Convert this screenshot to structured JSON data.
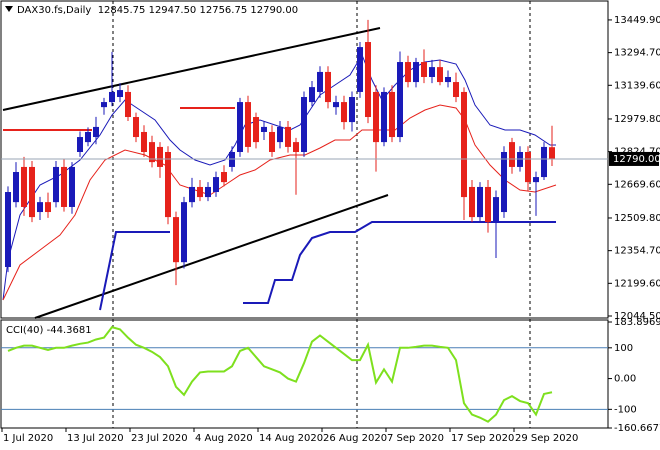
{
  "chart_data": [
    {
      "type": "candlestick",
      "title": "DAX30.fs,Daily  12845.75 12947.50 12756.75 12790.00",
      "categories": [
        "1 Jul 2020",
        null,
        null,
        null,
        null,
        null,
        null,
        null,
        "13 Jul 2020",
        null,
        null,
        null,
        null,
        null,
        null,
        null,
        "23 Jul 2020",
        null,
        null,
        null,
        null,
        null,
        null,
        null,
        "4 Aug 2020",
        null,
        null,
        null,
        null,
        null,
        null,
        null,
        "14 Aug 2020",
        null,
        null,
        null,
        null,
        null,
        null,
        null,
        "26 Aug 2020",
        null,
        null,
        null,
        null,
        null,
        null,
        null,
        "7 Sep 2020",
        null,
        null,
        null,
        null,
        null,
        null,
        null,
        "17 Sep 2020",
        null,
        null,
        null,
        null,
        null,
        null,
        null,
        "29 Sep 2020",
        null,
        null,
        null,
        null
      ],
      "open": [
        12277,
        12585,
        12752,
        12752,
        12538,
        12585,
        12585,
        12752,
        12562,
        12823,
        12870,
        12894,
        13036,
        13060,
        13084,
        13108,
        12989,
        12918,
        12870,
        12847,
        12823,
        12514,
        12300,
        12585,
        12657,
        12609,
        12633,
        12728,
        12752,
        12823,
        13060,
        12989,
        12918,
        12918,
        12870,
        12942,
        12870,
        12823,
        13060,
        13108,
        13203,
        13036,
        13060,
        12965,
        13108,
        13345,
        13108,
        12870,
        13108,
        12894,
        13250,
        13155,
        13250,
        13179,
        13226,
        13155,
        13155,
        13108,
        12657,
        12514,
        12657,
        12490,
        12538,
        12870,
        12752,
        12823,
        12680,
        12704,
        12845.75
      ],
      "high": [
        12660,
        12775,
        12800,
        12780,
        12610,
        12630,
        12780,
        12790,
        12775,
        12920,
        12940,
        12990,
        13080,
        13298,
        13150,
        13140,
        13010,
        12950,
        12900,
        12870,
        12850,
        12540,
        12610,
        12700,
        12690,
        12680,
        12730,
        12760,
        12850,
        13080,
        13090,
        13010,
        12970,
        12950,
        12970,
        12970,
        12890,
        13110,
        13160,
        13230,
        13230,
        13090,
        13090,
        13110,
        13345,
        13450,
        13140,
        13130,
        13140,
        13300,
        13280,
        13270,
        13310,
        13260,
        13260,
        13210,
        13200,
        13130,
        12690,
        12680,
        12690,
        12640,
        12850,
        12890,
        12850,
        12850,
        12730,
        12870,
        12947.5
      ],
      "low": [
        12253,
        12560,
        12520,
        12490,
        12500,
        12510,
        12560,
        12540,
        12530,
        12800,
        12850,
        12860,
        13000,
        13040,
        13060,
        12970,
        12870,
        12800,
        12750,
        12700,
        12480,
        12191,
        12270,
        12560,
        12590,
        12590,
        12610,
        12660,
        12730,
        12800,
        12820,
        12840,
        12880,
        12800,
        12840,
        12820,
        12620,
        12800,
        13040,
        13080,
        13030,
        13000,
        12930,
        12920,
        13080,
        12960,
        12730,
        12850,
        12870,
        12870,
        13130,
        13130,
        13150,
        13150,
        13140,
        13130,
        13060,
        12500,
        12490,
        12490,
        12440,
        12320,
        12510,
        12720,
        12730,
        12640,
        12520,
        12690,
        12756.75
      ],
      "close": [
        12633,
        12728,
        12562,
        12514,
        12585,
        12538,
        12752,
        12562,
        12752,
        12894,
        12918,
        12942,
        13060,
        13108,
        13117,
        12989,
        12894,
        12823,
        12775,
        12752,
        12514,
        12300,
        12585,
        12657,
        12609,
        12657,
        12704,
        12680,
        12823,
        13060,
        12847,
        12870,
        12942,
        12823,
        12942,
        12847,
        12823,
        13084,
        13131,
        13203,
        13060,
        13060,
        12965,
        13084,
        13321,
        12989,
        12870,
        13108,
        12894,
        13250,
        13155,
        13250,
        13179,
        13226,
        13155,
        13179,
        13084,
        12609,
        12514,
        12657,
        12490,
        12609,
        12823,
        12752,
        12823,
        12680,
        12704,
        12847,
        12790
      ],
      "up_color": "#1a1ab8",
      "down_color": "#e6221b",
      "ylim": [
        12035,
        13535
      ],
      "yticks": [
        {
          "value": 13449.9,
          "label": "13449.90"
        },
        {
          "value": 13294.7,
          "label": "13294.70"
        },
        {
          "value": 13139.6,
          "label": "13139.60"
        },
        {
          "value": 12979.8,
          "label": "12979.80"
        },
        {
          "value": 12824.7,
          "label": "12824.70"
        },
        {
          "value": 12669.6,
          "label": "12669.60"
        },
        {
          "value": 12509.8,
          "label": "12509.80"
        },
        {
          "value": 12354.7,
          "label": "12354.70"
        },
        {
          "value": 12199.6,
          "label": "12199.60"
        },
        {
          "value": 12044.5,
          "label": "12044.50"
        }
      ],
      "last_price": {
        "value": 12790,
        "label": "12790.00"
      }
    },
    {
      "type": "line",
      "title": "CCI(40) -44.3681",
      "values": [
        90,
        100,
        107,
        107,
        100,
        93,
        100,
        100,
        107,
        113,
        117,
        127,
        133,
        167,
        160,
        133,
        110,
        100,
        87,
        70,
        40,
        -27,
        -53,
        -10,
        20,
        23,
        23,
        23,
        40,
        90,
        100,
        70,
        40,
        30,
        20,
        0,
        -10,
        50,
        120,
        140,
        120,
        100,
        80,
        60,
        60,
        110,
        -13,
        30,
        -10,
        100,
        100,
        103,
        107,
        107,
        103,
        100,
        60,
        -80,
        -117,
        -127,
        -140,
        -117,
        -70,
        -57,
        -73,
        -80,
        -117,
        -50,
        -44.3681
      ],
      "color": "#7ee01e",
      "ylim": [
        -160.6677,
        183.8969
      ],
      "yticks": [
        183.8969,
        100,
        {
          "value": 0,
          "label": "0.00"
        },
        -100,
        -160.6677
      ],
      "levels": [
        100,
        -100
      ],
      "level_color": "#4a7fb5"
    }
  ]
}
